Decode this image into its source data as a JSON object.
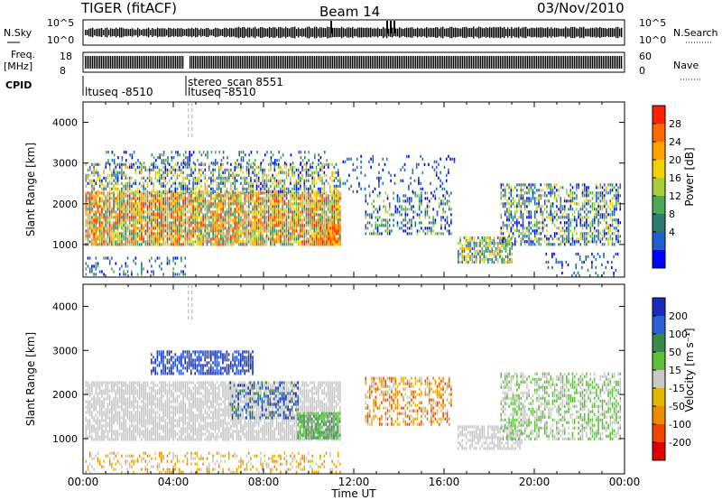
{
  "header": {
    "radar": "TIGER (fitACF)",
    "beam": "Beam 14",
    "date": "03/Nov/2010"
  },
  "noise_panel": {
    "left_label": "N.Sky",
    "right_label": "N.Search",
    "left_ticks": [
      "10^5",
      "10^0"
    ],
    "right_ticks": [
      "10^5",
      "10^0"
    ]
  },
  "freq_panel": {
    "left_label": "Freq.",
    "left_unit": "[MHz]",
    "left_ticks": [
      "18",
      "8"
    ],
    "right_label": "Nave",
    "right_ticks": [
      "60",
      "0"
    ]
  },
  "cpid_panel": {
    "label": "CPID",
    "entries": [
      {
        "text": "ltuseq -8510",
        "time_h": 0.0
      },
      {
        "text": "stereo_scan 8551",
        "time_h": 4.75
      },
      {
        "text": "ltuseq -8510",
        "time_h": 4.75
      }
    ]
  },
  "chart_data": [
    {
      "type": "heatmap",
      "name": "power",
      "ylabel": "Slant Range [km]",
      "xlim_hours": [
        0,
        24
      ],
      "ylim_km": [
        200,
        4500
      ],
      "yticks": [
        "1000",
        "2000",
        "3000",
        "4000"
      ],
      "colorbar": {
        "label": "Power [dB]",
        "ticks": [
          "4",
          "8",
          "12",
          "16",
          "20",
          "24",
          "28"
        ],
        "colors": [
          "#0000ff",
          "#1f5fd0",
          "#2d7c72",
          "#4ea85a",
          "#a6cf3a",
          "#f2d200",
          "#ffa200",
          "#ff6a00",
          "#ff2000"
        ]
      },
      "regions": [
        {
          "t": [
            0.1,
            11.4
          ],
          "r": [
            1000,
            2300
          ],
          "density": 0.9,
          "level": [
            2,
            8
          ]
        },
        {
          "t": [
            0.1,
            11.4
          ],
          "r": [
            2300,
            3000
          ],
          "density": 0.55,
          "level": [
            0,
            6
          ]
        },
        {
          "t": [
            1.0,
            10.8
          ],
          "r": [
            3000,
            3300
          ],
          "density": 0.25,
          "level": [
            0,
            3
          ]
        },
        {
          "t": [
            0.1,
            4.5
          ],
          "r": [
            250,
            700
          ],
          "density": 0.25,
          "level": [
            0,
            3
          ]
        },
        {
          "t": [
            10.5,
            11.4
          ],
          "r": [
            1000,
            1500
          ],
          "density": 0.9,
          "level": [
            5,
            8
          ]
        },
        {
          "t": [
            12.5,
            16.3
          ],
          "r": [
            1300,
            2300
          ],
          "density": 0.4,
          "level": [
            0,
            4
          ]
        },
        {
          "t": [
            11.5,
            16.5
          ],
          "r": [
            2300,
            3200
          ],
          "density": 0.15,
          "level": [
            0,
            2
          ]
        },
        {
          "t": [
            16.6,
            19.0
          ],
          "r": [
            600,
            1200
          ],
          "density": 0.75,
          "level": [
            1,
            6
          ]
        },
        {
          "t": [
            18.5,
            23.8
          ],
          "r": [
            1000,
            2500
          ],
          "density": 0.55,
          "level": [
            0,
            5
          ]
        },
        {
          "t": [
            20.5,
            23.8
          ],
          "r": [
            250,
            800
          ],
          "density": 0.2,
          "level": [
            0,
            2
          ]
        }
      ]
    },
    {
      "type": "heatmap",
      "name": "velocity",
      "ylabel": "Slant Range [km]",
      "xlabel": "Time UT",
      "xlim_hours": [
        0,
        24
      ],
      "ylim_km": [
        200,
        4500
      ],
      "yticks": [
        "1000",
        "2000",
        "3000",
        "4000"
      ],
      "xticks": [
        "00:00",
        "04:00",
        "08:00",
        "12:00",
        "16:00",
        "20:00",
        "00:00"
      ],
      "colorbar": {
        "label": "Velocity [m s⁻¹]",
        "ticks": [
          "200",
          "100",
          "50",
          "15",
          "-15",
          "-50",
          "-100",
          "-200"
        ],
        "colors": [
          "#1a2cbf",
          "#2a5fd8",
          "#3a8a4a",
          "#5dbf3a",
          "#c8c8c8",
          "#e2b700",
          "#f08a00",
          "#f04400",
          "#e00000"
        ]
      },
      "regions": [
        {
          "t": [
            0.1,
            11.4
          ],
          "r": [
            1000,
            2300
          ],
          "density": 0.8,
          "level": [
            4,
            4
          ]
        },
        {
          "t": [
            3.0,
            7.5
          ],
          "r": [
            2500,
            3000
          ],
          "density": 0.7,
          "level": [
            0,
            1
          ]
        },
        {
          "t": [
            6.5,
            9.5
          ],
          "r": [
            1500,
            2300
          ],
          "density": 0.45,
          "level": [
            0,
            2
          ]
        },
        {
          "t": [
            9.5,
            11.4
          ],
          "r": [
            1000,
            1600
          ],
          "density": 0.8,
          "level": [
            2,
            3
          ]
        },
        {
          "t": [
            0.1,
            11.4
          ],
          "r": [
            250,
            700
          ],
          "density": 0.3,
          "level": [
            4,
            6
          ]
        },
        {
          "t": [
            12.5,
            16.3
          ],
          "r": [
            1300,
            2400
          ],
          "density": 0.5,
          "level": [
            4,
            7
          ]
        },
        {
          "t": [
            16.6,
            19.5
          ],
          "r": [
            800,
            1300
          ],
          "density": 0.6,
          "level": [
            4,
            4
          ]
        },
        {
          "t": [
            18.5,
            23.8
          ],
          "r": [
            1000,
            2500
          ],
          "density": 0.55,
          "level": [
            3,
            4
          ]
        }
      ]
    }
  ]
}
